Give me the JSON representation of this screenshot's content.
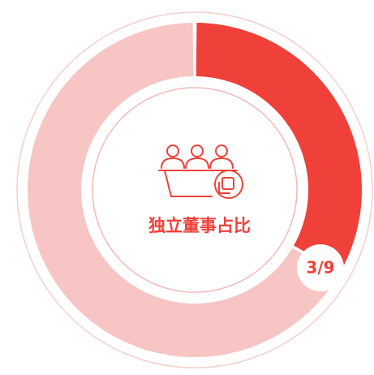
{
  "chart_data": {
    "type": "donut",
    "title": "独立董事占比",
    "center_label": "3/9",
    "categories": [
      null,
      null
    ],
    "values": [
      3,
      6
    ],
    "colors": [
      "#ef413a",
      "#f7c5c3"
    ]
  }
}
